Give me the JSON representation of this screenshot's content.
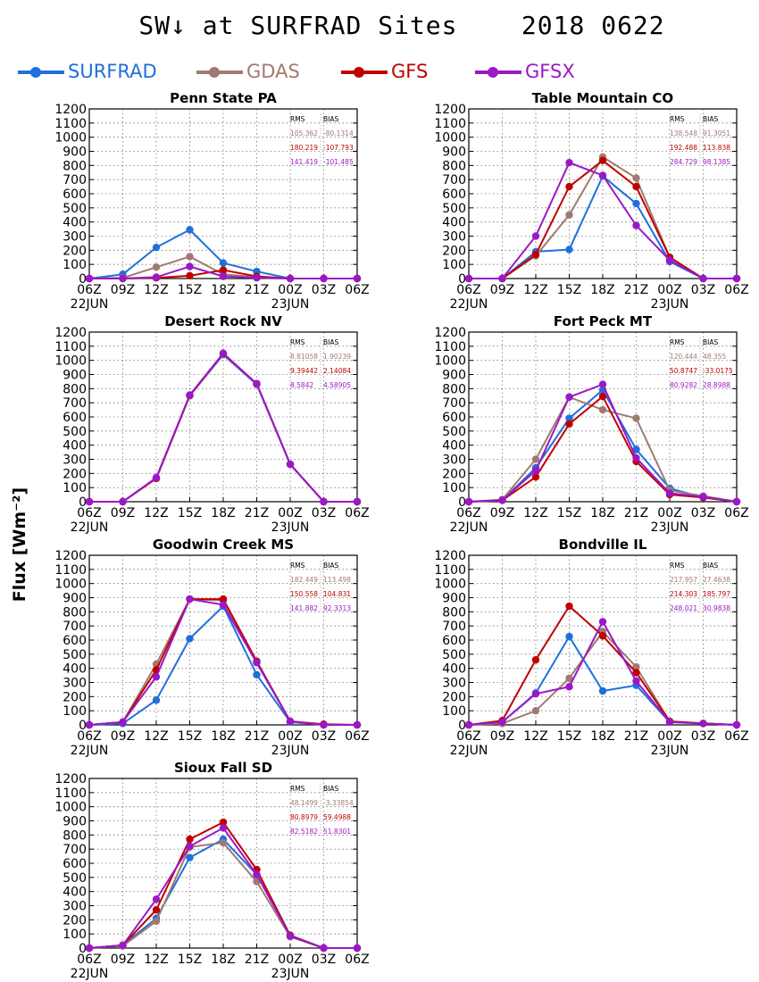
{
  "title": "SW↓ at SURFRAD Sites    2018 0622",
  "ylabel": "Flux [Wm⁻²]",
  "legend": [
    {
      "name": "SURFRAD",
      "color": "#1f6fdc"
    },
    {
      "name": "GDAS",
      "color": "#a07a70"
    },
    {
      "name": "GFS",
      "color": "#c00000"
    },
    {
      "name": "GFSX",
      "color": "#9b18c8"
    }
  ],
  "chart_data": [
    {
      "type": "line",
      "title": "Penn State PA",
      "categories": [
        "06Z",
        "09Z",
        "12Z",
        "15Z",
        "18Z",
        "21Z",
        "00Z",
        "03Z",
        "06Z"
      ],
      "date_labels": [
        {
          "tick": 0,
          "text": "22JUN"
        },
        {
          "tick": 6,
          "text": "23JUN"
        }
      ],
      "ylim": [
        0,
        1200
      ],
      "yticks": [
        0,
        100,
        200,
        300,
        400,
        500,
        600,
        700,
        800,
        900,
        1000,
        1100,
        1200
      ],
      "grid": true,
      "stats_header": [
        "RMS",
        "BIAS"
      ],
      "stats": [
        {
          "series": "GDAS",
          "rms": "105.362",
          "bias": "-80.1314"
        },
        {
          "series": "GFS",
          "rms": "180.219",
          "bias": "-107.793"
        },
        {
          "series": "GFSX",
          "rms": "141.419",
          "bias": "-101.485"
        }
      ],
      "series": [
        {
          "name": "SURFRAD",
          "values": [
            0,
            30,
            220,
            345,
            110,
            50,
            0,
            0,
            0
          ]
        },
        {
          "name": "GDAS",
          "values": [
            0,
            5,
            80,
            155,
            30,
            10,
            0,
            0,
            0
          ]
        },
        {
          "name": "GFS",
          "values": [
            0,
            0,
            5,
            20,
            60,
            15,
            0,
            0,
            0
          ]
        },
        {
          "name": "GFSX",
          "values": [
            0,
            0,
            10,
            85,
            15,
            5,
            0,
            0,
            0
          ]
        }
      ]
    },
    {
      "type": "line",
      "title": "Table Mountain CO",
      "categories": [
        "06Z",
        "09Z",
        "12Z",
        "15Z",
        "18Z",
        "21Z",
        "00Z",
        "03Z",
        "06Z"
      ],
      "date_labels": [
        {
          "tick": 0,
          "text": "22JUN"
        },
        {
          "tick": 6,
          "text": "23JUN"
        }
      ],
      "ylim": [
        0,
        1200
      ],
      "yticks": [
        0,
        100,
        200,
        300,
        400,
        500,
        600,
        700,
        800,
        900,
        1000,
        1100,
        1200
      ],
      "grid": true,
      "stats_header": [
        "RMS",
        "BIAS"
      ],
      "stats": [
        {
          "series": "GDAS",
          "rms": "138.548",
          "bias": "91.3051"
        },
        {
          "series": "GFS",
          "rms": "192.488",
          "bias": "113.838"
        },
        {
          "series": "GFSX",
          "rms": "284.729",
          "bias": "98.1385"
        }
      ],
      "series": [
        {
          "name": "SURFRAD",
          "values": [
            0,
            0,
            190,
            205,
            725,
            530,
            120,
            0,
            0
          ]
        },
        {
          "name": "GDAS",
          "values": [
            0,
            0,
            160,
            450,
            860,
            710,
            150,
            0,
            0
          ]
        },
        {
          "name": "GFS",
          "values": [
            0,
            0,
            170,
            650,
            835,
            650,
            150,
            0,
            0
          ]
        },
        {
          "name": "GFSX",
          "values": [
            0,
            0,
            300,
            820,
            730,
            375,
            130,
            0,
            0
          ]
        }
      ]
    },
    {
      "type": "line",
      "title": "Desert Rock NV",
      "categories": [
        "06Z",
        "09Z",
        "12Z",
        "15Z",
        "18Z",
        "21Z",
        "00Z",
        "03Z",
        "06Z"
      ],
      "date_labels": [
        {
          "tick": 0,
          "text": "22JUN"
        },
        {
          "tick": 6,
          "text": "23JUN"
        }
      ],
      "ylim": [
        0,
        1200
      ],
      "yticks": [
        0,
        100,
        200,
        300,
        400,
        500,
        600,
        700,
        800,
        900,
        1000,
        1100,
        1200
      ],
      "grid": true,
      "stats_header": [
        "RMS",
        "BIAS"
      ],
      "stats": [
        {
          "series": "GDAS",
          "rms": "8.81058",
          "bias": "1.90239"
        },
        {
          "series": "GFS",
          "rms": "9.39442",
          "bias": "2.14084"
        },
        {
          "series": "GFSX",
          "rms": "8.5842",
          "bias": "4.58905"
        }
      ],
      "series": [
        {
          "name": "SURFRAD",
          "values": [
            0,
            0,
            165,
            750,
            1040,
            830,
            265,
            0,
            0
          ]
        },
        {
          "name": "GDAS",
          "values": [
            0,
            0,
            165,
            750,
            1045,
            835,
            265,
            0,
            0
          ]
        },
        {
          "name": "GFS",
          "values": [
            0,
            0,
            165,
            752,
            1048,
            835,
            265,
            0,
            0
          ]
        },
        {
          "name": "GFSX",
          "values": [
            0,
            0,
            170,
            755,
            1050,
            835,
            265,
            0,
            0
          ]
        }
      ]
    },
    {
      "type": "line",
      "title": "Fort Peck MT",
      "categories": [
        "06Z",
        "09Z",
        "12Z",
        "15Z",
        "18Z",
        "21Z",
        "00Z",
        "03Z",
        "06Z"
      ],
      "date_labels": [
        {
          "tick": 0,
          "text": "22JUN"
        },
        {
          "tick": 6,
          "text": "23JUN"
        }
      ],
      "ylim": [
        0,
        1200
      ],
      "yticks": [
        0,
        100,
        200,
        300,
        400,
        500,
        600,
        700,
        800,
        900,
        1000,
        1100,
        1200
      ],
      "grid": true,
      "stats_header": [
        "RMS",
        "BIAS"
      ],
      "stats": [
        {
          "series": "GDAS",
          "rms": "120.444",
          "bias": "48.355"
        },
        {
          "series": "GFS",
          "rms": "50.8747",
          "bias": "-33.0175"
        },
        {
          "series": "GFSX",
          "rms": "80.9282",
          "bias": "28.8988"
        }
      ],
      "series": [
        {
          "name": "SURFRAD",
          "values": [
            0,
            10,
            240,
            590,
            790,
            370,
            95,
            30,
            0
          ]
        },
        {
          "name": "GDAS",
          "values": [
            0,
            15,
            300,
            740,
            650,
            590,
            80,
            40,
            0
          ]
        },
        {
          "name": "GFS",
          "values": [
            0,
            10,
            175,
            550,
            745,
            285,
            50,
            30,
            0
          ]
        },
        {
          "name": "GFSX",
          "values": [
            0,
            10,
            220,
            740,
            830,
            310,
            60,
            35,
            0
          ]
        }
      ]
    },
    {
      "type": "line",
      "title": "Goodwin Creek MS",
      "categories": [
        "06Z",
        "09Z",
        "12Z",
        "15Z",
        "18Z",
        "21Z",
        "00Z",
        "03Z",
        "06Z"
      ],
      "date_labels": [
        {
          "tick": 0,
          "text": "22JUN"
        },
        {
          "tick": 6,
          "text": "23JUN"
        }
      ],
      "ylim": [
        0,
        1200
      ],
      "yticks": [
        0,
        100,
        200,
        300,
        400,
        500,
        600,
        700,
        800,
        900,
        1000,
        1100,
        1200
      ],
      "grid": true,
      "stats_header": [
        "RMS",
        "BIAS"
      ],
      "stats": [
        {
          "series": "GDAS",
          "rms": "182.449",
          "bias": "113.498"
        },
        {
          "series": "GFS",
          "rms": "150.558",
          "bias": "104.831"
        },
        {
          "series": "GFSX",
          "rms": "141.882",
          "bias": "92.3313"
        }
      ],
      "series": [
        {
          "name": "SURFRAD",
          "values": [
            0,
            10,
            175,
            610,
            840,
            355,
            20,
            0,
            0
          ]
        },
        {
          "name": "GDAS",
          "values": [
            0,
            20,
            430,
            890,
            880,
            440,
            25,
            0,
            0
          ]
        },
        {
          "name": "GFS",
          "values": [
            0,
            20,
            390,
            890,
            890,
            450,
            25,
            5,
            0
          ]
        },
        {
          "name": "GFSX",
          "values": [
            0,
            20,
            340,
            890,
            850,
            440,
            25,
            0,
            0
          ]
        }
      ]
    },
    {
      "type": "line",
      "title": "Bondville IL",
      "categories": [
        "06Z",
        "09Z",
        "12Z",
        "15Z",
        "18Z",
        "21Z",
        "00Z",
        "03Z",
        "06Z"
      ],
      "date_labels": [
        {
          "tick": 0,
          "text": "22JUN"
        },
        {
          "tick": 6,
          "text": "23JUN"
        }
      ],
      "ylim": [
        0,
        1200
      ],
      "yticks": [
        0,
        100,
        200,
        300,
        400,
        500,
        600,
        700,
        800,
        900,
        1000,
        1100,
        1200
      ],
      "grid": true,
      "stats_header": [
        "RMS",
        "BIAS"
      ],
      "stats": [
        {
          "series": "GDAS",
          "rms": "217.957",
          "bias": "27.4638"
        },
        {
          "series": "GFS",
          "rms": "214.303",
          "bias": "185.797"
        },
        {
          "series": "GFSX",
          "rms": "248.021",
          "bias": "30.9838"
        }
      ],
      "series": [
        {
          "name": "SURFRAD",
          "values": [
            0,
            20,
            225,
            625,
            240,
            280,
            20,
            10,
            0
          ]
        },
        {
          "name": "GDAS",
          "values": [
            0,
            10,
            100,
            330,
            660,
            410,
            25,
            10,
            0
          ]
        },
        {
          "name": "GFS",
          "values": [
            0,
            30,
            460,
            840,
            630,
            370,
            25,
            10,
            0
          ]
        },
        {
          "name": "GFSX",
          "values": [
            0,
            20,
            220,
            270,
            730,
            310,
            20,
            10,
            0
          ]
        }
      ]
    },
    {
      "type": "line",
      "title": "Sioux Fall SD",
      "categories": [
        "06Z",
        "09Z",
        "12Z",
        "15Z",
        "18Z",
        "21Z",
        "00Z",
        "03Z",
        "06Z"
      ],
      "date_labels": [
        {
          "tick": 0,
          "text": "22JUN"
        },
        {
          "tick": 6,
          "text": "23JUN"
        }
      ],
      "ylim": [
        0,
        1200
      ],
      "yticks": [
        0,
        100,
        200,
        300,
        400,
        500,
        600,
        700,
        800,
        900,
        1000,
        1100,
        1200
      ],
      "grid": true,
      "stats_header": [
        "RMS",
        "BIAS"
      ],
      "stats": [
        {
          "series": "GDAS",
          "rms": "48.1499",
          "bias": "-3.33854"
        },
        {
          "series": "GFS",
          "rms": "80.8979",
          "bias": "59.4988"
        },
        {
          "series": "GFSX",
          "rms": "82.5182",
          "bias": "51.8301"
        }
      ],
      "series": [
        {
          "name": "SURFRAD",
          "values": [
            0,
            20,
            210,
            640,
            770,
            520,
            90,
            0,
            0
          ]
        },
        {
          "name": "GDAS",
          "values": [
            0,
            15,
            190,
            715,
            745,
            470,
            80,
            0,
            0
          ]
        },
        {
          "name": "GFS",
          "values": [
            0,
            20,
            270,
            770,
            890,
            555,
            90,
            0,
            0
          ]
        },
        {
          "name": "GFSX",
          "values": [
            0,
            20,
            345,
            720,
            850,
            520,
            85,
            0,
            0
          ]
        }
      ]
    }
  ]
}
